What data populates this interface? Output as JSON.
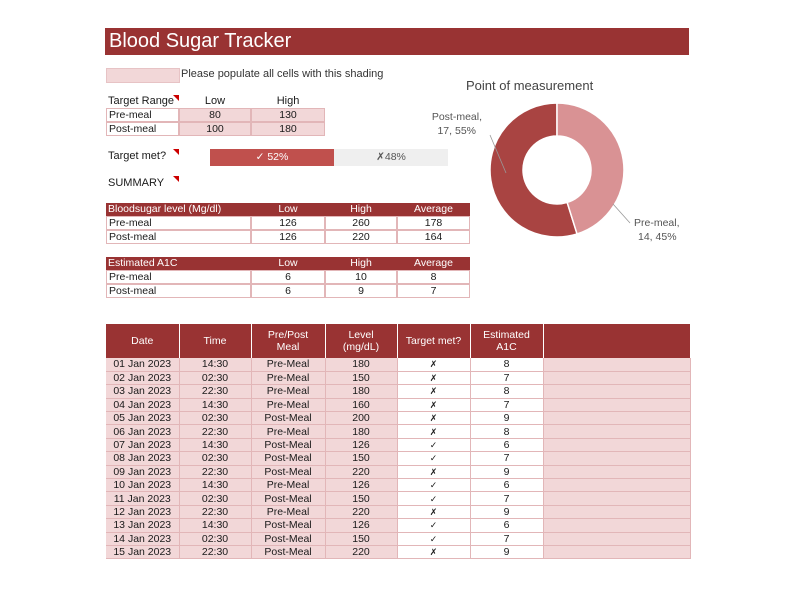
{
  "title": "Blood Sugar Tracker",
  "legend_text": "Please populate all cells with this shading",
  "colors": {
    "accent": "#993333",
    "shade": "#f2d7d8",
    "pie_post": "#a94442",
    "pie_pre": "#d99294"
  },
  "target_range": {
    "label": "Target Range",
    "col_low": "Low",
    "col_high": "High",
    "rows": [
      {
        "label": "Pre-meal",
        "low": "80",
        "high": "130"
      },
      {
        "label": "Post-meal",
        "low": "100",
        "high": "180"
      }
    ]
  },
  "target_met": {
    "label": "Target met?",
    "yes_text": "✓ 52%",
    "no_text": "✗48%",
    "yes_fraction": 0.52
  },
  "summary_label": "SUMMARY",
  "level_table": {
    "header": [
      "Bloodsugar level (Mg/dl)",
      "Low",
      "High",
      "Average"
    ],
    "rows": [
      [
        "Pre-meal",
        "126",
        "260",
        "178"
      ],
      [
        "Post-meal",
        "126",
        "220",
        "164"
      ]
    ]
  },
  "a1c_table": {
    "header": [
      "Estimated A1C",
      "Low",
      "High",
      "Average"
    ],
    "rows": [
      [
        "Pre-meal",
        "6",
        "10",
        "8"
      ],
      [
        "Post-meal",
        "6",
        "9",
        "7"
      ]
    ]
  },
  "chart": {
    "title": "Point of measurement",
    "label_post_line1": "Post-meal,",
    "label_post_line2": "17, 55%",
    "label_pre_line1": "Pre-meal,",
    "label_pre_line2": "14, 45%"
  },
  "chart_data": {
    "type": "pie",
    "title": "Point of measurement",
    "categories": [
      "Post-meal",
      "Pre-meal"
    ],
    "values": [
      17,
      14
    ],
    "percent": [
      55,
      45
    ],
    "donut": true
  },
  "log": {
    "headers": [
      "Date",
      "Time",
      "Pre/Post Meal",
      "Level (mg/dL)",
      "Target met?",
      "Estimated A1C"
    ],
    "rows": [
      [
        "01 Jan 2023",
        "14:30",
        "Pre-Meal",
        "180",
        "✗",
        "8"
      ],
      [
        "02 Jan 2023",
        "02:30",
        "Pre-Meal",
        "150",
        "✗",
        "7"
      ],
      [
        "03 Jan 2023",
        "22:30",
        "Pre-Meal",
        "180",
        "✗",
        "8"
      ],
      [
        "04 Jan 2023",
        "14:30",
        "Pre-Meal",
        "160",
        "✗",
        "7"
      ],
      [
        "05 Jan 2023",
        "02:30",
        "Post-Meal",
        "200",
        "✗",
        "9"
      ],
      [
        "06 Jan 2023",
        "22:30",
        "Pre-Meal",
        "180",
        "✗",
        "8"
      ],
      [
        "07 Jan 2023",
        "14:30",
        "Post-Meal",
        "126",
        "✓",
        "6"
      ],
      [
        "08 Jan 2023",
        "02:30",
        "Post-Meal",
        "150",
        "✓",
        "7"
      ],
      [
        "09 Jan 2023",
        "22:30",
        "Post-Meal",
        "220",
        "✗",
        "9"
      ],
      [
        "10 Jan 2023",
        "14:30",
        "Pre-Meal",
        "126",
        "✓",
        "6"
      ],
      [
        "11 Jan 2023",
        "02:30",
        "Post-Meal",
        "150",
        "✓",
        "7"
      ],
      [
        "12 Jan 2023",
        "22:30",
        "Pre-Meal",
        "220",
        "✗",
        "9"
      ],
      [
        "13 Jan 2023",
        "14:30",
        "Post-Meal",
        "126",
        "✓",
        "6"
      ],
      [
        "14 Jan 2023",
        "02:30",
        "Post-Meal",
        "150",
        "✓",
        "7"
      ],
      [
        "15 Jan 2023",
        "22:30",
        "Post-Meal",
        "220",
        "✗",
        "9"
      ]
    ]
  }
}
